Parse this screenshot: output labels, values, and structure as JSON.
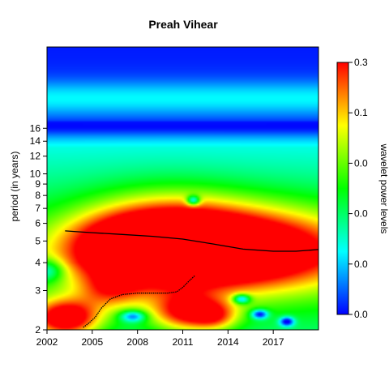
{
  "chart_data": {
    "type": "heatmap",
    "title": "Preah Vihear",
    "xlabel": "",
    "ylabel": "period (in years)",
    "x_ticks": [
      "2002",
      "2005",
      "2008",
      "2011",
      "2014",
      "2017"
    ],
    "x_tick_values": [
      2002,
      2005,
      2008,
      2011,
      2014,
      2017
    ],
    "xlim": [
      2002,
      2020
    ],
    "y_scale": "log2",
    "y_ticks": [
      "2",
      "3",
      "4",
      "5",
      "6",
      "7",
      "8",
      "9",
      "10",
      "12",
      "14",
      "16"
    ],
    "y_tick_values": [
      2,
      3,
      4,
      5,
      6,
      7,
      8,
      9,
      10,
      12,
      14,
      16
    ],
    "ylim": [
      2,
      37
    ],
    "colorbar": {
      "label": "wavelet power levels",
      "tick_labels": [
        "0.0",
        "0.0",
        "0.0",
        "0.0",
        "0.1",
        "0.3"
      ],
      "colors": [
        "#0000ff",
        "#00ffff",
        "#00ff00",
        "#ffff00",
        "#ff0000"
      ]
    },
    "heat_blobs": [
      {
        "x": 2014.8,
        "period": 4.6,
        "power": 1.0,
        "sx": 5.2,
        "sp": 0.42
      },
      {
        "x": 2010.0,
        "period": 5.0,
        "power": 0.78,
        "sx": 3.6,
        "sp": 0.45
      },
      {
        "x": 2006.5,
        "period": 4.7,
        "power": 0.45,
        "sx": 3.0,
        "sp": 0.35
      },
      {
        "x": 2003.2,
        "period": 2.25,
        "power": 0.95,
        "sx": 1.6,
        "sp": 0.2
      },
      {
        "x": 2011.2,
        "period": 2.4,
        "power": 0.7,
        "sx": 1.6,
        "sp": 0.2
      },
      {
        "x": 2013.2,
        "period": 2.3,
        "power": 0.45,
        "sx": 1.1,
        "sp": 0.15
      },
      {
        "x": 2006.2,
        "period": 3.0,
        "power": 0.4,
        "sx": 1.5,
        "sp": 0.2
      }
    ],
    "ridge": [
      {
        "x": 2003.2,
        "period": 5.55
      },
      {
        "x": 2005.0,
        "period": 5.45
      },
      {
        "x": 2007.0,
        "period": 5.35
      },
      {
        "x": 2009.0,
        "period": 5.25
      },
      {
        "x": 2011.0,
        "period": 5.1
      },
      {
        "x": 2013.0,
        "period": 4.85
      },
      {
        "x": 2015.0,
        "period": 4.6
      },
      {
        "x": 2017.0,
        "period": 4.5
      },
      {
        "x": 2018.5,
        "period": 4.5
      },
      {
        "x": 2020.0,
        "period": 4.58
      }
    ],
    "ridge2": [
      {
        "x": 2004.4,
        "period": 2.05
      },
      {
        "x": 2004.8,
        "period": 2.15
      },
      {
        "x": 2005.2,
        "period": 2.28
      },
      {
        "x": 2005.6,
        "period": 2.5
      },
      {
        "x": 2006.2,
        "period": 2.75
      },
      {
        "x": 2007.0,
        "period": 2.88
      },
      {
        "x": 2008.0,
        "period": 2.92
      },
      {
        "x": 2009.0,
        "period": 2.92
      },
      {
        "x": 2010.0,
        "period": 2.92
      },
      {
        "x": 2010.6,
        "period": 2.96
      },
      {
        "x": 2011.0,
        "period": 3.1
      },
      {
        "x": 2011.4,
        "period": 3.3
      },
      {
        "x": 2011.8,
        "period": 3.5
      }
    ]
  }
}
